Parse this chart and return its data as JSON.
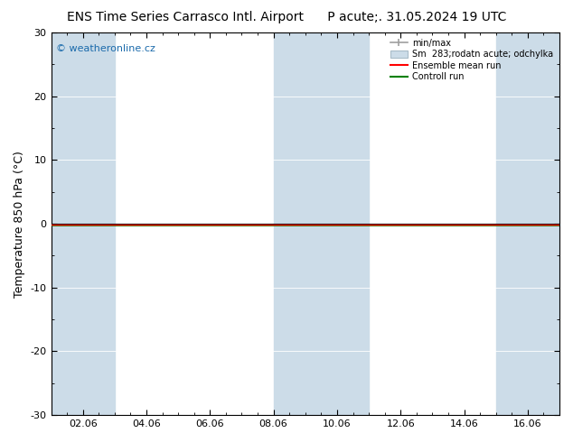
{
  "title_left": "ENS Time Series Carrasco Intl. Airport",
  "title_right": "P acute;. 31.05.2024 19 UTC",
  "ylabel": "Temperature 850 hPa (°C)",
  "ylim": [
    -30,
    30
  ],
  "yticks": [
    -30,
    -20,
    -10,
    0,
    10,
    20,
    30
  ],
  "xlabel_dates": [
    "02.06",
    "04.06",
    "06.06",
    "08.06",
    "10.06",
    "12.06",
    "14.06",
    "16.06"
  ],
  "x_tick_positions": [
    1,
    3,
    5,
    7,
    9,
    11,
    13,
    15
  ],
  "watermark": "© weatheronline.cz",
  "legend_minmax": "min/max",
  "legend_spread": "Sm  283;rodatn acute; odchylka",
  "legend_ensemble": "Ensemble mean run",
  "legend_control": "Controll run",
  "color_minmax": "#a0a0a0",
  "color_spread_face": "#ccdce8",
  "color_spread_edge": "#a8bcc8",
  "color_ensemble": "#ff0000",
  "color_control": "#008000",
  "shaded_band_color": "#ccdce8",
  "plot_bg_color": "#ffffff",
  "fig_bg_color": "#ffffff",
  "shaded_ranges": [
    [
      0,
      2
    ],
    [
      7,
      10
    ],
    [
      14,
      16
    ]
  ],
  "zero_line_color": "#000000",
  "green_line_color": "#008000",
  "red_line_color": "#ff0000",
  "title_fontsize": 10,
  "label_fontsize": 9,
  "tick_fontsize": 8,
  "watermark_color": "#1a6aab",
  "xlim": [
    0,
    16
  ]
}
